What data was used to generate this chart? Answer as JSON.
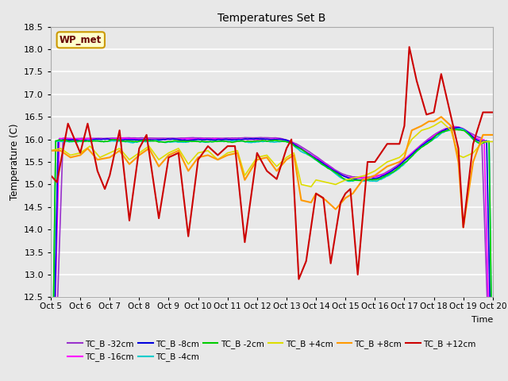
{
  "title": "Temperatures Set B",
  "xlabel": "Time",
  "ylabel": "Temperature (C)",
  "ylim": [
    12.5,
    18.5
  ],
  "yticks": [
    12.5,
    13.0,
    13.5,
    14.0,
    14.5,
    15.0,
    15.5,
    16.0,
    16.5,
    17.0,
    17.5,
    18.0,
    18.5
  ],
  "x_start": 5,
  "x_end": 20,
  "n_points": 361,
  "fig_bg_color": "#e8e8e8",
  "plot_bg_color": "#e8e8e8",
  "grid_color": "#ffffff",
  "series": [
    {
      "label": "TC_B -32cm",
      "color": "#9933cc",
      "lw": 1.2
    },
    {
      "label": "TC_B -16cm",
      "color": "#ff00ff",
      "lw": 1.2
    },
    {
      "label": "TC_B -8cm",
      "color": "#0000dd",
      "lw": 1.2
    },
    {
      "label": "TC_B -4cm",
      "color": "#00cccc",
      "lw": 1.2
    },
    {
      "label": "TC_B -2cm",
      "color": "#00cc00",
      "lw": 1.2
    },
    {
      "label": "TC_B +4cm",
      "color": "#dddd00",
      "lw": 1.2
    },
    {
      "label": "TC_B +8cm",
      "color": "#ff9900",
      "lw": 1.5
    },
    {
      "label": "TC_B +12cm",
      "color": "#cc0000",
      "lw": 1.5
    }
  ],
  "wp_met_box_color": "#ffffcc",
  "wp_met_border_color": "#cc9900",
  "wp_met_text_color": "#660000",
  "xtick_labels": [
    "Oct 5",
    "Oct 6",
    "Oct 7",
    "Oct 8",
    "Oct 9",
    "Oct 10",
    "Oct 11",
    "Oct 12",
    "Oct 13",
    "Oct 14",
    "Oct 15",
    "Oct 16",
    "Oct 17",
    "Oct 18",
    "Oct 19",
    "Oct 20"
  ],
  "xtick_positions": [
    5,
    6,
    7,
    8,
    9,
    10,
    11,
    12,
    13,
    14,
    15,
    16,
    17,
    18,
    19,
    20
  ]
}
